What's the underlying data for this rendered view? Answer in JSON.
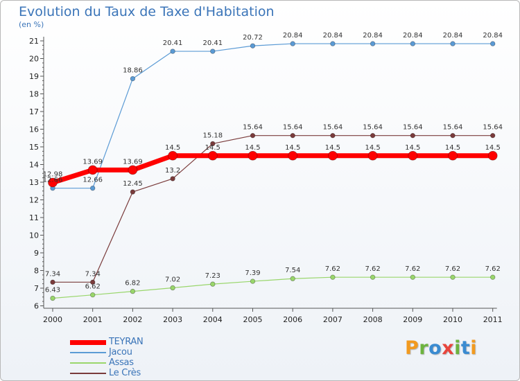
{
  "title": "Evolution du Taux de Taxe d'Habitation",
  "unit": "(en %)",
  "logo_text": "Proxiti",
  "chart_data": {
    "type": "line",
    "title": "Evolution du Taux de Taxe d'Habitation",
    "ylabel": "(en %)",
    "xlabel": "",
    "categories": [
      "2000",
      "2001",
      "2002",
      "2003",
      "2004",
      "2005",
      "2006",
      "2007",
      "2008",
      "2009",
      "2010",
      "2011"
    ],
    "ylim": [
      6,
      21
    ],
    "yticks": [
      6,
      7,
      8,
      9,
      10,
      11,
      12,
      13,
      14,
      15,
      16,
      17,
      18,
      19,
      20,
      21
    ],
    "grid": false,
    "legend": "bottom-left",
    "series": [
      {
        "name": "TEYRAN",
        "color": "#ff0000",
        "values": [
          12.98,
          13.69,
          13.69,
          14.5,
          14.5,
          14.5,
          14.5,
          14.5,
          14.5,
          14.5,
          14.5,
          14.5
        ],
        "labels": [
          "12.98",
          "13.69",
          "13.69",
          "14.5",
          "14.5",
          "14.5",
          "14.5",
          "14.5",
          "14.5",
          "14.5",
          "14.5",
          "14.5"
        ]
      },
      {
        "name": "Jacou",
        "color": "#5b9bd5",
        "values": [
          12.66,
          12.66,
          18.86,
          20.41,
          20.41,
          20.72,
          20.84,
          20.84,
          20.84,
          20.84,
          20.84,
          20.84
        ],
        "labels": [
          "12.66",
          "12.66",
          "18.86",
          "20.41",
          "20.41",
          "20.72",
          "20.84",
          "20.84",
          "20.84",
          "20.84",
          "20.84",
          "20.84"
        ]
      },
      {
        "name": "Assas",
        "color": "#99d66b",
        "values": [
          6.43,
          6.62,
          6.82,
          7.02,
          7.23,
          7.39,
          7.54,
          7.62,
          7.62,
          7.62,
          7.62,
          7.62
        ],
        "labels": [
          "6.43",
          "6.62",
          "6.82",
          "7.02",
          "7.23",
          "7.39",
          "7.54",
          "7.62",
          "7.62",
          "7.62",
          "7.62",
          "7.62"
        ]
      },
      {
        "name": "Le Crès",
        "color": "#7a3b3b",
        "values": [
          7.34,
          7.34,
          12.45,
          13.2,
          15.18,
          15.64,
          15.64,
          15.64,
          15.64,
          15.64,
          15.64,
          15.64
        ],
        "labels": [
          "7.34",
          "7.34",
          "12.45",
          "13.2",
          "15.18",
          "15.64",
          "15.64",
          "15.64",
          "15.64",
          "15.64",
          "15.64",
          "15.64"
        ]
      }
    ]
  }
}
